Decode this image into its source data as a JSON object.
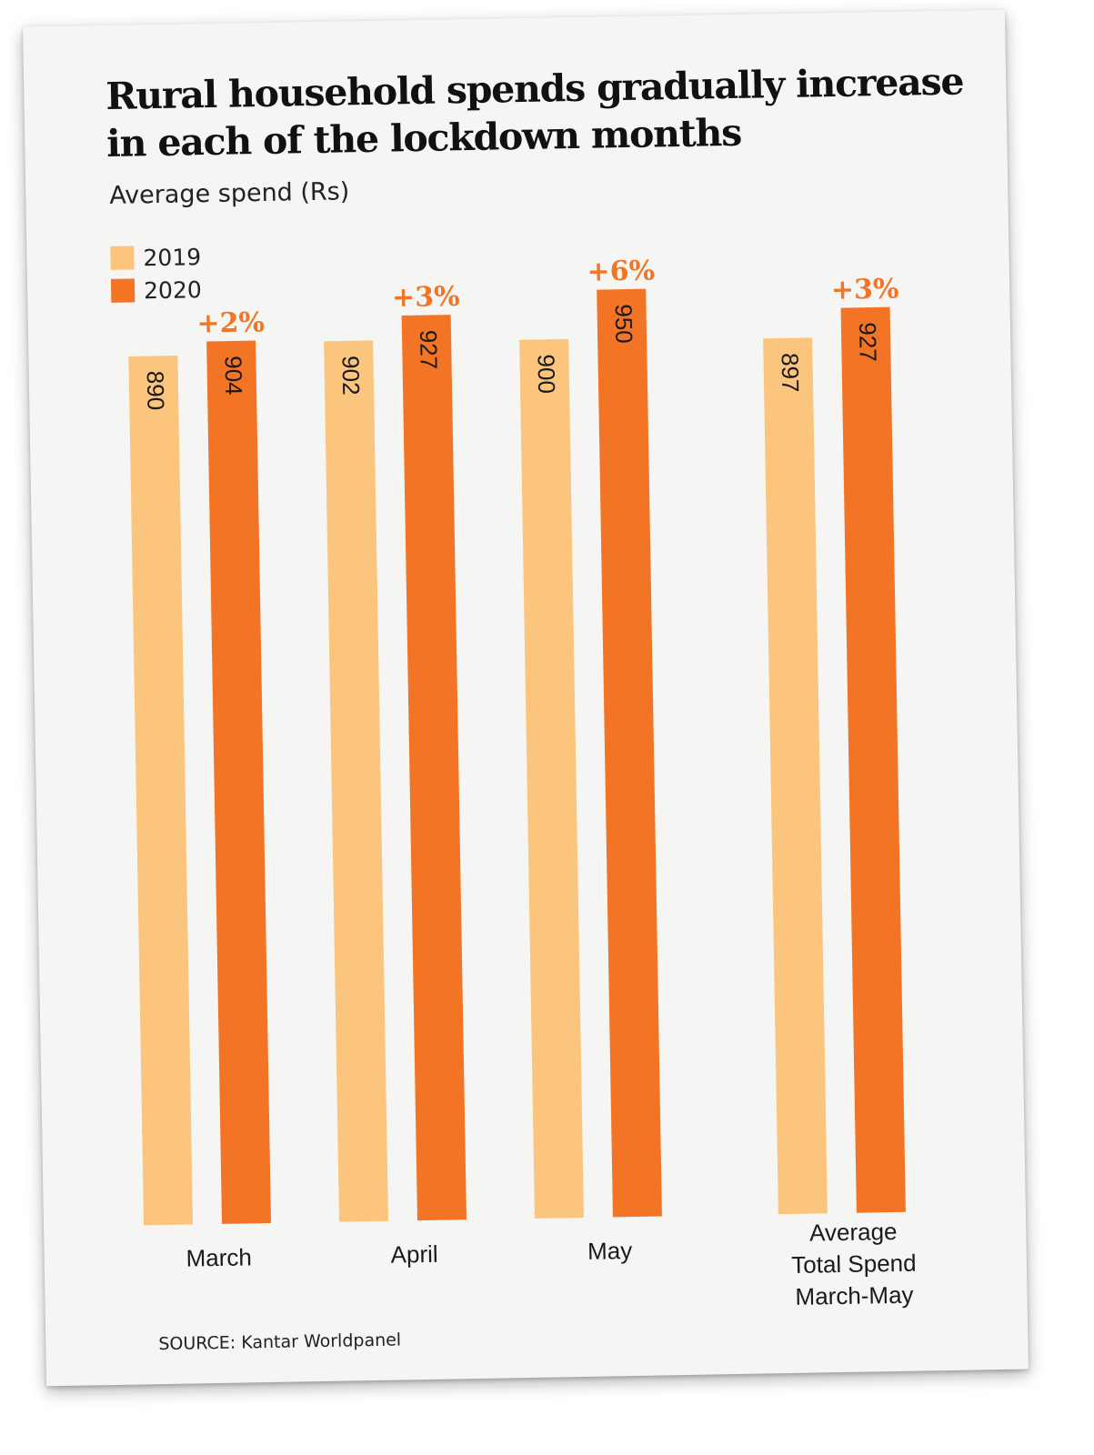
{
  "title": "Rural household spends gradually increase in each of the lockdown months",
  "subtitle": "Average spend (Rs)",
  "legend": [
    {
      "label": "2019",
      "color": "#fcc57e"
    },
    {
      "label": "2020",
      "color": "#f37424"
    }
  ],
  "source": "SOURCE: Kantar Worldpanel",
  "chart_data": {
    "type": "bar",
    "categories": [
      "March",
      "April",
      "May",
      "Average Total Spend March-May"
    ],
    "series": [
      {
        "name": "2019",
        "values": [
          890,
          902,
          900,
          897
        ],
        "color": "#fcc57e"
      },
      {
        "name": "2020",
        "values": [
          904,
          927,
          950,
          927
        ],
        "color": "#f37424"
      }
    ],
    "annotations": [
      "+2%",
      "+3%",
      "+6%",
      "+3%"
    ],
    "annotation_color": "#f37424",
    "title": "Rural household spends gradually increase in each of the lockdown months",
    "ylabel": "Average spend (Rs)",
    "ylim": [
      0,
      950
    ],
    "legend_position": "top-left",
    "grid": false
  }
}
